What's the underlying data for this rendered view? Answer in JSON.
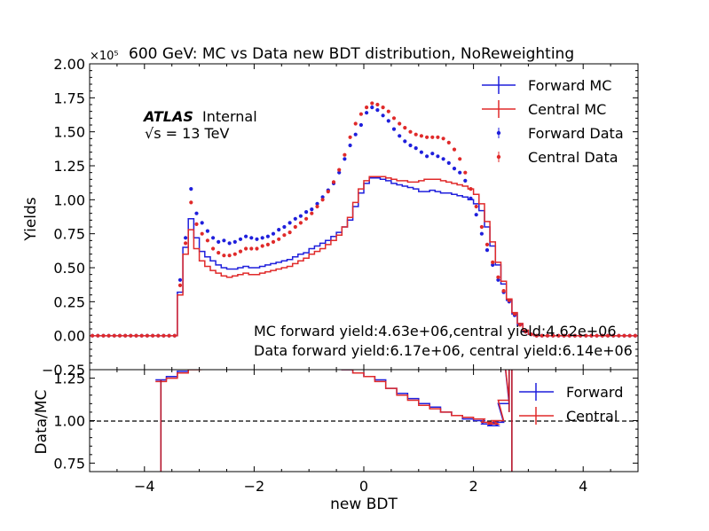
{
  "chart_data": {
    "type": "line",
    "title": "600 GeV: MC vs Data new BDT distribution, NoReweighting",
    "xlabel": "new BDT",
    "ylabel_top": "Yields",
    "ylabel_bottom": "Data/MC",
    "y_multiplier": "×10⁵",
    "xlim": [
      -5,
      5
    ],
    "ylim_top": [
      -0.25,
      2.0
    ],
    "ylim_bottom": [
      0.7,
      1.3
    ],
    "xticks": [
      "−4",
      "−2",
      "0",
      "2",
      "4"
    ],
    "yticks_top": [
      "−0.25",
      "0.00",
      "0.25",
      "0.50",
      "0.75",
      "1.00",
      "1.25",
      "1.50",
      "1.75",
      "2.00"
    ],
    "yticks_bottom": [
      "0.75",
      "1.00",
      "1.25"
    ],
    "atlas_label": "ATLAS",
    "atlas_status": "Internal",
    "energy_label": "√s = 13 TeV",
    "yield_text_mc": "MC forward yield:4.63e+06,central yield:4.62e+06",
    "yield_text_data": "Data forward yield:6.17e+06, central yield:6.14e+06",
    "legend_top": [
      "Forward MC",
      "Central MC",
      "Forward Data",
      "Central Data"
    ],
    "legend_bottom": [
      "Forward",
      "Central"
    ],
    "colors": {
      "forward": "#1f1fdc",
      "central": "#e02a2a"
    },
    "bin_width": 0.1,
    "x_start": -5.0,
    "series": [
      {
        "name": "Forward MC",
        "values": [
          0,
          0,
          0,
          0,
          0,
          0,
          0,
          0,
          0,
          0,
          0,
          0,
          0,
          0,
          0,
          0,
          0.32,
          0.65,
          0.86,
          0.72,
          0.62,
          0.58,
          0.55,
          0.52,
          0.5,
          0.49,
          0.49,
          0.5,
          0.51,
          0.5,
          0.5,
          0.51,
          0.52,
          0.53,
          0.54,
          0.55,
          0.56,
          0.58,
          0.6,
          0.61,
          0.64,
          0.66,
          0.68,
          0.7,
          0.73,
          0.76,
          0.8,
          0.85,
          0.95,
          1.05,
          1.12,
          1.16,
          1.16,
          1.15,
          1.14,
          1.12,
          1.11,
          1.1,
          1.09,
          1.08,
          1.06,
          1.06,
          1.07,
          1.06,
          1.05,
          1.05,
          1.04,
          1.03,
          1.02,
          1.0,
          0.97,
          0.92,
          0.8,
          0.66,
          0.52,
          0.38,
          0.26,
          0.16,
          0.08,
          0.03,
          0.01,
          0,
          0,
          0,
          0,
          0,
          0,
          0,
          0,
          0,
          0,
          0,
          0,
          0,
          0,
          0,
          0,
          0,
          0,
          0
        ]
      },
      {
        "name": "Central MC",
        "values": [
          0,
          0,
          0,
          0,
          0,
          0,
          0,
          0,
          0,
          0,
          0,
          0,
          0,
          0,
          0,
          0,
          0.3,
          0.6,
          0.78,
          0.64,
          0.55,
          0.51,
          0.48,
          0.46,
          0.44,
          0.43,
          0.44,
          0.45,
          0.46,
          0.45,
          0.45,
          0.46,
          0.47,
          0.48,
          0.49,
          0.5,
          0.51,
          0.53,
          0.55,
          0.57,
          0.6,
          0.62,
          0.64,
          0.67,
          0.7,
          0.74,
          0.8,
          0.87,
          0.98,
          1.08,
          1.14,
          1.17,
          1.17,
          1.17,
          1.16,
          1.15,
          1.14,
          1.14,
          1.13,
          1.13,
          1.14,
          1.15,
          1.15,
          1.15,
          1.14,
          1.13,
          1.12,
          1.11,
          1.1,
          1.08,
          1.04,
          0.97,
          0.84,
          0.69,
          0.54,
          0.4,
          0.27,
          0.17,
          0.09,
          0.04,
          0.01,
          0,
          0,
          0,
          0,
          0,
          0,
          0,
          0,
          0,
          0,
          0,
          0,
          0,
          0,
          0,
          0,
          0,
          0,
          0
        ]
      },
      {
        "name": "Forward Data",
        "values": [
          0,
          0,
          0,
          0,
          0,
          0,
          0,
          0,
          0,
          0,
          0,
          0,
          0,
          0,
          0,
          0,
          0.41,
          0.72,
          1.08,
          0.9,
          0.83,
          0.77,
          0.72,
          0.69,
          0.7,
          0.68,
          0.69,
          0.71,
          0.73,
          0.72,
          0.71,
          0.72,
          0.73,
          0.75,
          0.78,
          0.8,
          0.83,
          0.86,
          0.88,
          0.91,
          0.93,
          0.97,
          1.02,
          1.07,
          1.12,
          1.2,
          1.3,
          1.4,
          1.48,
          1.55,
          1.64,
          1.68,
          1.66,
          1.62,
          1.58,
          1.52,
          1.47,
          1.43,
          1.4,
          1.38,
          1.35,
          1.32,
          1.34,
          1.32,
          1.3,
          1.27,
          1.23,
          1.2,
          1.14,
          1.01,
          0.89,
          0.75,
          0.63,
          0.52,
          0.41,
          0.32,
          0.25,
          0.15,
          0.08,
          0.03,
          0.01,
          0,
          0,
          0,
          0,
          0,
          0,
          0,
          0,
          0,
          0,
          0,
          0,
          0,
          0,
          0,
          0,
          0,
          0,
          0
        ]
      },
      {
        "name": "Central Data",
        "values": [
          0,
          0,
          0,
          0,
          0,
          0,
          0,
          0,
          0,
          0,
          0,
          0,
          0,
          0,
          0,
          0,
          0.37,
          0.68,
          0.98,
          0.82,
          0.75,
          0.7,
          0.64,
          0.61,
          0.59,
          0.59,
          0.6,
          0.62,
          0.64,
          0.64,
          0.64,
          0.66,
          0.67,
          0.69,
          0.71,
          0.74,
          0.76,
          0.8,
          0.83,
          0.86,
          0.9,
          0.95,
          1.0,
          1.06,
          1.13,
          1.22,
          1.33,
          1.46,
          1.56,
          1.63,
          1.68,
          1.71,
          1.7,
          1.68,
          1.65,
          1.6,
          1.56,
          1.53,
          1.5,
          1.48,
          1.47,
          1.46,
          1.46,
          1.46,
          1.45,
          1.42,
          1.37,
          1.3,
          1.2,
          1.08,
          0.95,
          0.8,
          0.67,
          0.54,
          0.43,
          0.33,
          0.26,
          0.16,
          0.08,
          0.03,
          0.01,
          0,
          0,
          0,
          0,
          0,
          0,
          0,
          0,
          0,
          0,
          0,
          0,
          0,
          0,
          0,
          0,
          0,
          0,
          0
        ]
      }
    ],
    "ratio_series": [
      {
        "name": "Forward",
        "x": [
          -3.7,
          -3.5,
          -3.3,
          -3.1,
          -0.9,
          -0.7,
          -0.5,
          -0.3,
          -0.1,
          0.1,
          0.3,
          0.5,
          0.7,
          0.9,
          1.1,
          1.3,
          1.5,
          1.7,
          1.9,
          2.1,
          2.25,
          2.35,
          2.45,
          2.55,
          2.65
        ],
        "values": [
          1.24,
          1.26,
          1.29,
          1.31,
          1.35,
          1.34,
          1.32,
          1.3,
          1.28,
          1.26,
          1.24,
          1.19,
          1.16,
          1.13,
          1.1,
          1.08,
          1.05,
          1.03,
          1.01,
          1.0,
          0.98,
          0.97,
          0.99,
          1.1,
          1.4
        ]
      },
      {
        "name": "Central",
        "x": [
          -3.7,
          -3.5,
          -3.3,
          -3.1,
          -0.9,
          -0.7,
          -0.5,
          -0.3,
          -0.1,
          0.1,
          0.3,
          0.5,
          0.7,
          0.9,
          1.1,
          1.3,
          1.5,
          1.7,
          1.9,
          2.1,
          2.25,
          2.35,
          2.45,
          2.55,
          2.65
        ],
        "values": [
          1.23,
          1.25,
          1.28,
          1.3,
          1.34,
          1.33,
          1.31,
          1.3,
          1.28,
          1.26,
          1.23,
          1.19,
          1.15,
          1.12,
          1.09,
          1.07,
          1.05,
          1.03,
          1.02,
          1.01,
          0.99,
          0.98,
          1.0,
          1.12,
          1.4
        ]
      }
    ]
  }
}
